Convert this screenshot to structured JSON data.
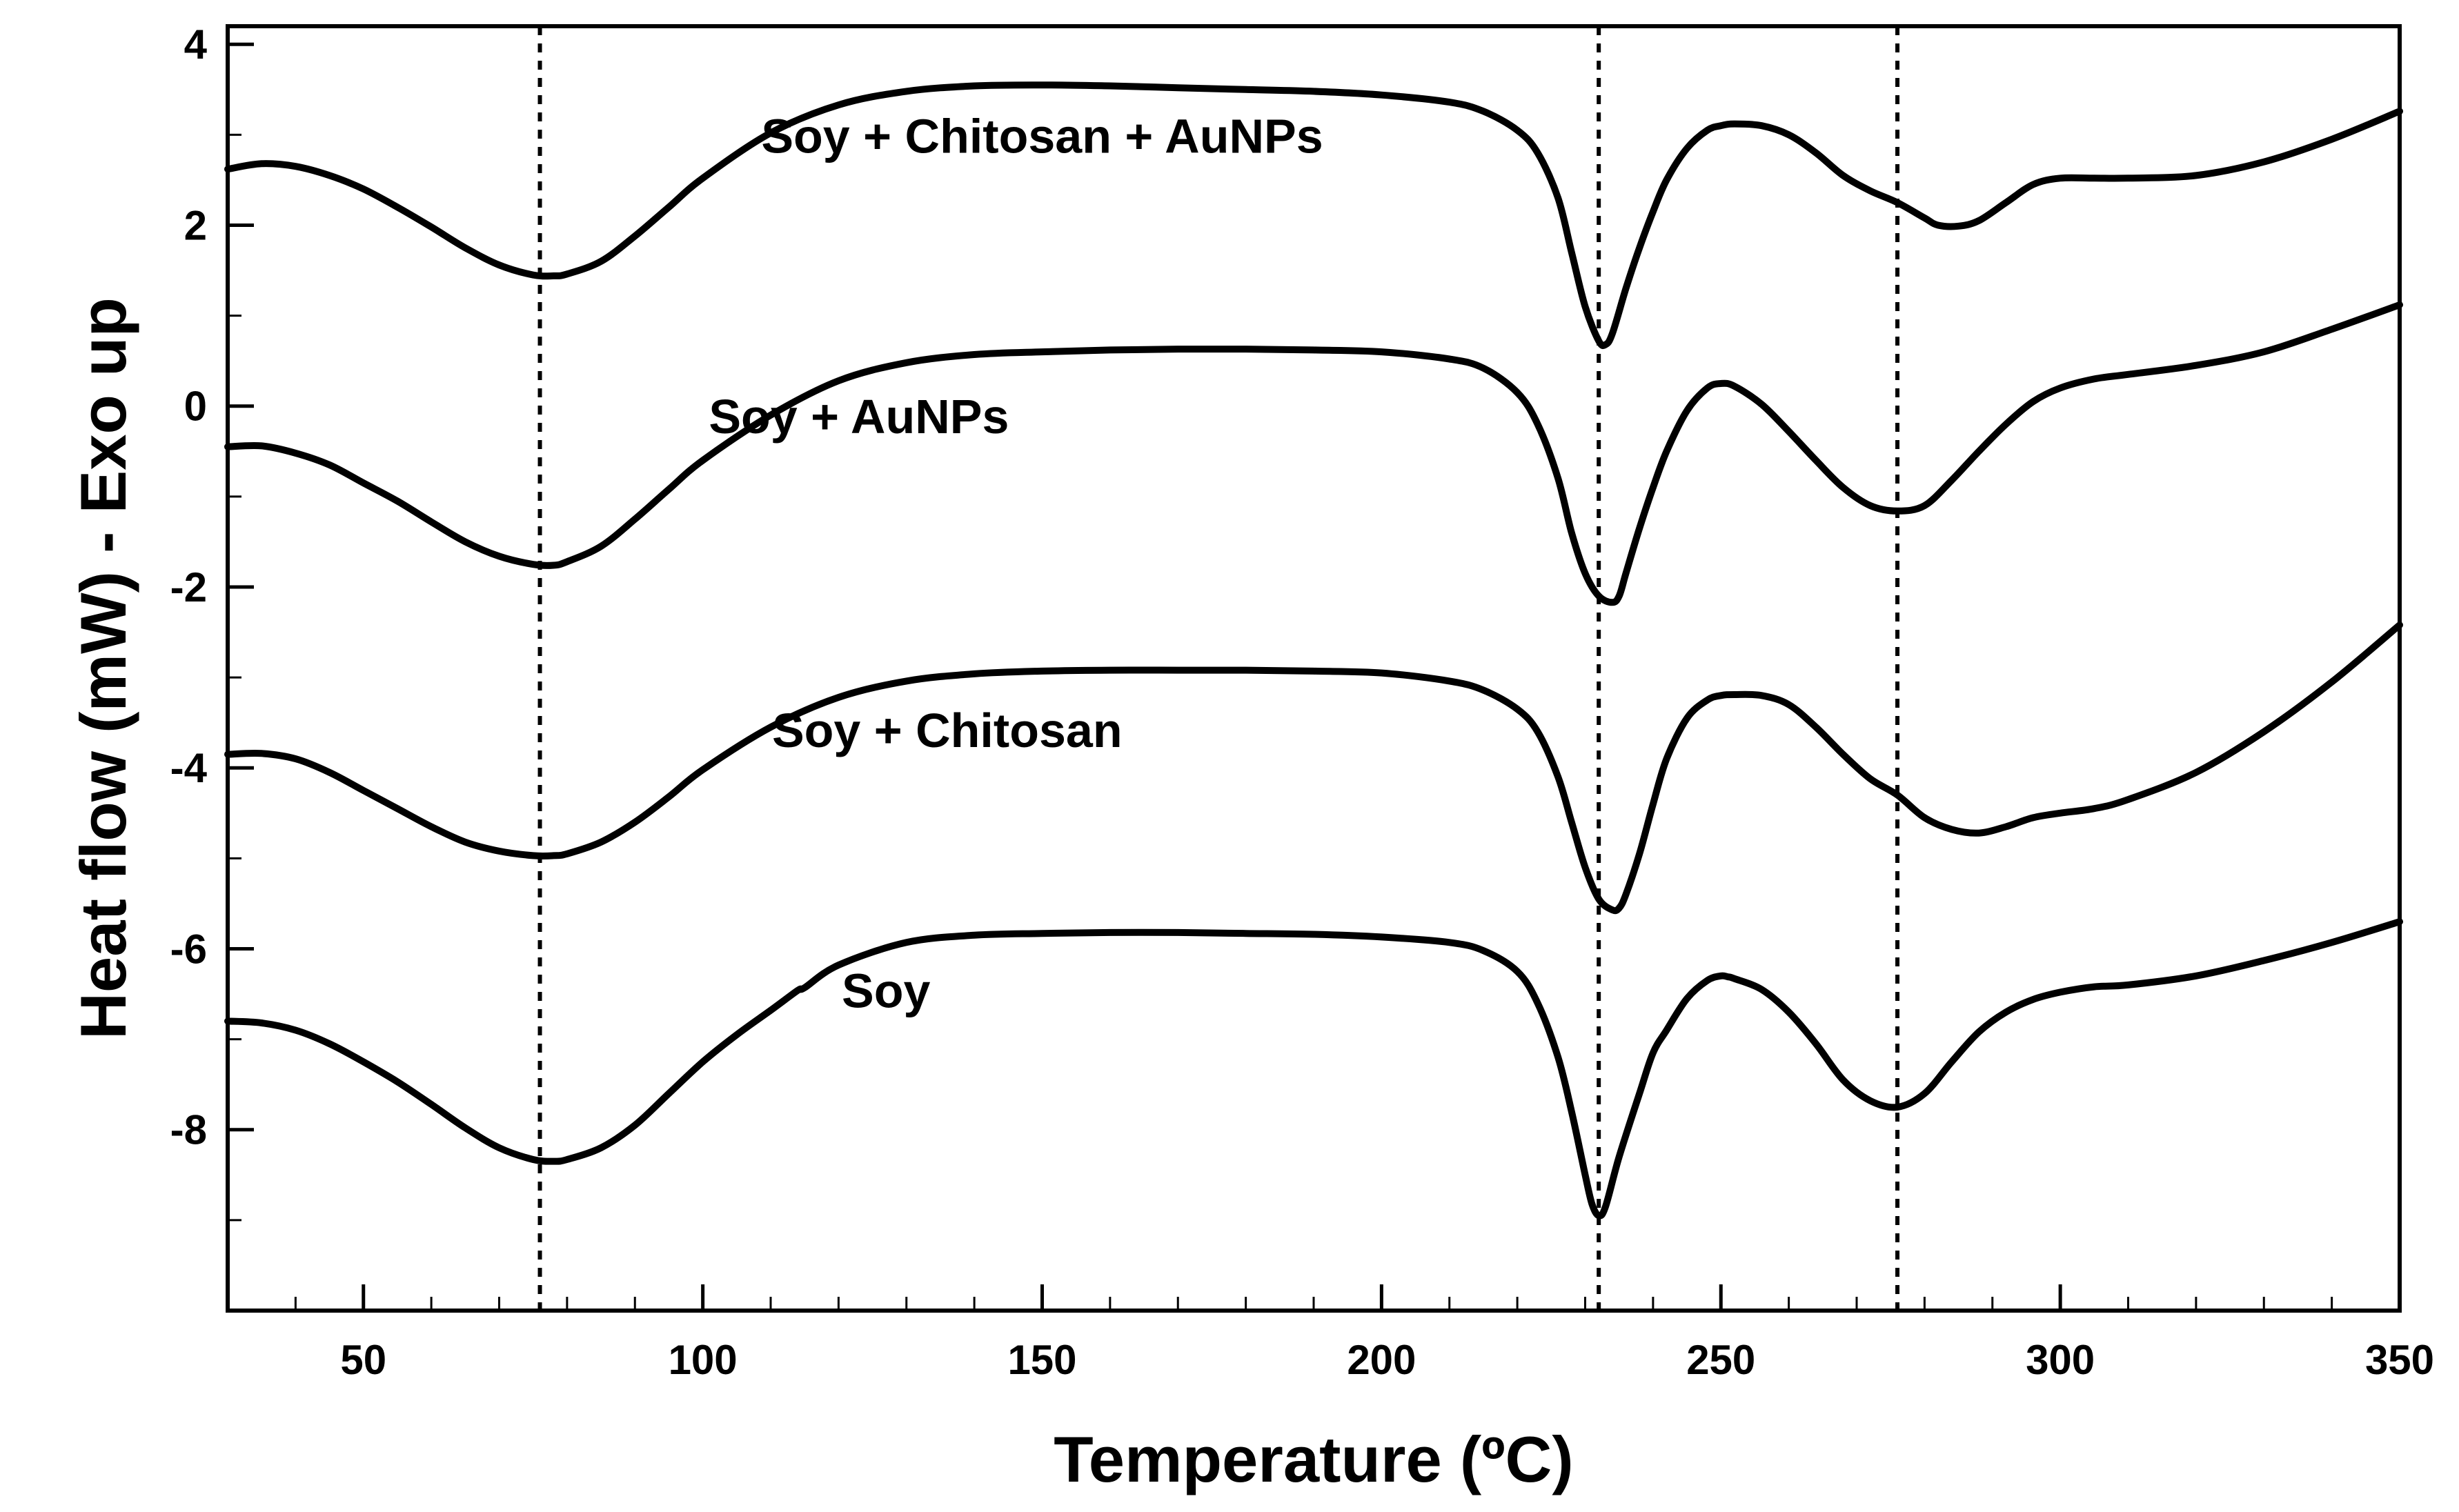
{
  "chart_data": {
    "type": "line",
    "title": "",
    "xlabel": "Temperature (ºC)",
    "ylabel": "Heat flow (mW) - Exo up",
    "xlim": [
      30,
      350
    ],
    "ylim": [
      -10,
      4.2
    ],
    "xticks": [
      50,
      100,
      150,
      200,
      250,
      300,
      350
    ],
    "yticks": [
      4,
      2,
      0,
      -2,
      -4,
      -6,
      -8
    ],
    "x_minor_step": 10,
    "y_minor_step": 1,
    "grid": false,
    "reference_lines_x": [
      76,
      232,
      276
    ],
    "series": [
      {
        "name": "Soy + Chitosan + AuNPs",
        "label": "Soy + Chitosan + AuNPs",
        "label_at": [
          150,
          2.8
        ],
        "x": [
          30,
          35,
          40,
          45,
          50,
          55,
          60,
          65,
          70,
          75,
          78,
          80,
          85,
          90,
          95,
          100,
          110,
          120,
          130,
          140,
          150,
          160,
          170,
          180,
          190,
          200,
          210,
          215,
          220,
          223,
          226,
          228,
          230,
          232,
          233,
          234,
          236,
          238,
          240,
          242,
          245,
          248,
          250,
          252,
          256,
          260,
          264,
          268,
          272,
          276,
          280,
          282,
          285,
          288,
          292,
          296,
          300,
          305,
          310,
          320,
          330,
          340,
          350
        ],
        "y": [
          2.62,
          2.68,
          2.65,
          2.55,
          2.4,
          2.2,
          1.98,
          1.75,
          1.56,
          1.45,
          1.44,
          1.46,
          1.6,
          1.88,
          2.2,
          2.52,
          3.02,
          3.33,
          3.48,
          3.54,
          3.55,
          3.54,
          3.52,
          3.5,
          3.48,
          3.44,
          3.36,
          3.26,
          3.05,
          2.8,
          2.3,
          1.7,
          1.1,
          0.72,
          0.68,
          0.8,
          1.3,
          1.75,
          2.15,
          2.5,
          2.85,
          3.05,
          3.1,
          3.12,
          3.1,
          3.0,
          2.8,
          2.55,
          2.38,
          2.25,
          2.08,
          2.0,
          1.99,
          2.05,
          2.25,
          2.45,
          2.52,
          2.52,
          2.52,
          2.55,
          2.7,
          2.95,
          3.26
        ]
      },
      {
        "name": "Soy + AuNPs",
        "label": "Soy + AuNPs",
        "label_at": [
          123,
          -0.3
        ],
        "x": [
          30,
          35,
          40,
          45,
          50,
          55,
          60,
          65,
          70,
          75,
          78,
          80,
          85,
          90,
          95,
          100,
          110,
          120,
          130,
          140,
          150,
          160,
          170,
          180,
          190,
          200,
          210,
          215,
          220,
          223,
          226,
          228,
          230,
          232,
          234,
          235,
          236,
          238,
          240,
          242,
          245,
          248,
          250,
          252,
          256,
          260,
          264,
          268,
          272,
          276,
          280,
          284,
          288,
          292,
          296,
          300,
          305,
          310,
          320,
          330,
          340,
          350
        ],
        "y": [
          -0.45,
          -0.44,
          -0.52,
          -0.65,
          -0.85,
          -1.05,
          -1.28,
          -1.5,
          -1.66,
          -1.75,
          -1.76,
          -1.72,
          -1.55,
          -1.25,
          -0.92,
          -0.6,
          -0.1,
          0.28,
          0.48,
          0.57,
          0.6,
          0.62,
          0.63,
          0.63,
          0.62,
          0.6,
          0.52,
          0.42,
          0.15,
          -0.2,
          -0.8,
          -1.4,
          -1.85,
          -2.1,
          -2.17,
          -2.1,
          -1.85,
          -1.35,
          -0.9,
          -0.5,
          -0.05,
          0.2,
          0.25,
          0.22,
          0.02,
          -0.28,
          -0.6,
          -0.9,
          -1.1,
          -1.16,
          -1.1,
          -0.82,
          -0.5,
          -0.2,
          0.05,
          0.2,
          0.3,
          0.35,
          0.45,
          0.6,
          0.85,
          1.12
        ]
      },
      {
        "name": "Soy + Chitosan",
        "label": "Soy + Chitosan",
        "label_at": [
          136,
          -3.77
        ],
        "x": [
          30,
          35,
          40,
          45,
          50,
          55,
          60,
          65,
          70,
          75,
          78,
          80,
          85,
          90,
          95,
          100,
          110,
          120,
          130,
          140,
          150,
          160,
          170,
          180,
          190,
          200,
          210,
          215,
          220,
          223,
          226,
          228,
          230,
          232,
          234,
          235,
          236,
          238,
          240,
          242,
          245,
          248,
          250,
          252,
          256,
          260,
          264,
          268,
          272,
          276,
          280,
          284,
          288,
          292,
          296,
          300,
          305,
          310,
          320,
          330,
          340,
          350
        ],
        "y": [
          -3.85,
          -3.84,
          -3.9,
          -4.05,
          -4.25,
          -4.45,
          -4.65,
          -4.82,
          -4.92,
          -4.97,
          -4.97,
          -4.95,
          -4.82,
          -4.6,
          -4.32,
          -4.02,
          -3.55,
          -3.22,
          -3.04,
          -2.96,
          -2.93,
          -2.92,
          -2.92,
          -2.92,
          -2.93,
          -2.95,
          -3.04,
          -3.14,
          -3.35,
          -3.6,
          -4.1,
          -4.6,
          -5.1,
          -5.45,
          -5.57,
          -5.55,
          -5.4,
          -4.95,
          -4.4,
          -3.9,
          -3.45,
          -3.25,
          -3.2,
          -3.19,
          -3.2,
          -3.3,
          -3.55,
          -3.85,
          -4.12,
          -4.3,
          -4.55,
          -4.68,
          -4.72,
          -4.65,
          -4.55,
          -4.5,
          -4.45,
          -4.35,
          -4.05,
          -3.6,
          -3.05,
          -2.42
        ]
      },
      {
        "name": "Soy",
        "label": "Soy",
        "label_at": [
          127,
          -6.65
        ],
        "x": [
          30,
          35,
          40,
          45,
          50,
          55,
          60,
          65,
          70,
          75,
          78,
          80,
          85,
          90,
          95,
          100,
          105,
          110,
          114,
          115,
          120,
          130,
          140,
          150,
          160,
          170,
          180,
          190,
          200,
          210,
          215,
          220,
          223,
          226,
          228,
          230,
          231,
          232,
          233,
          235,
          238,
          240,
          242,
          245,
          248,
          250,
          251,
          252,
          256,
          260,
          264,
          268,
          272,
          276,
          280,
          284,
          288,
          292,
          296,
          300,
          305,
          310,
          320,
          330,
          340,
          350
        ],
        "y": [
          -6.8,
          -6.82,
          -6.9,
          -7.05,
          -7.25,
          -7.47,
          -7.72,
          -7.98,
          -8.2,
          -8.33,
          -8.35,
          -8.33,
          -8.2,
          -7.95,
          -7.6,
          -7.25,
          -6.95,
          -6.68,
          -6.46,
          -6.43,
          -6.18,
          -5.93,
          -5.85,
          -5.83,
          -5.82,
          -5.82,
          -5.83,
          -5.84,
          -5.87,
          -5.93,
          -6.02,
          -6.25,
          -6.6,
          -7.2,
          -7.8,
          -8.5,
          -8.82,
          -8.95,
          -8.85,
          -8.3,
          -7.6,
          -7.15,
          -6.9,
          -6.55,
          -6.35,
          -6.3,
          -6.31,
          -6.33,
          -6.45,
          -6.7,
          -7.05,
          -7.45,
          -7.68,
          -7.75,
          -7.6,
          -7.25,
          -6.92,
          -6.7,
          -6.56,
          -6.48,
          -6.42,
          -6.4,
          -6.3,
          -6.13,
          -5.93,
          -5.7
        ]
      }
    ]
  }
}
